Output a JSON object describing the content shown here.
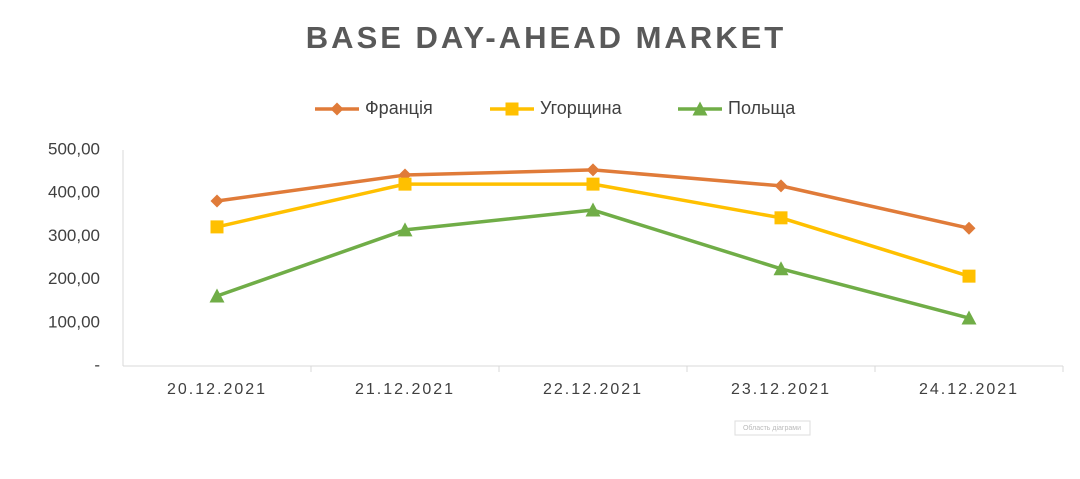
{
  "chart_data": {
    "type": "line",
    "title": "BASE DAY-AHEAD MARKET",
    "categories": [
      "20.12.2021",
      "21.12.2021",
      "22.12.2021",
      "23.12.2021",
      "24.12.2021"
    ],
    "series": [
      {
        "name": "Франція",
        "color": "#e07b39",
        "marker": "diamond",
        "values": [
          382,
          442,
          454,
          417,
          319
        ]
      },
      {
        "name": "Угорщина",
        "color": "#ffc000",
        "marker": "square",
        "values": [
          322,
          421,
          421,
          343,
          208
        ]
      },
      {
        "name": "Польща",
        "color": "#70ad47",
        "marker": "triangle",
        "values": [
          162,
          315,
          361,
          225,
          111
        ]
      }
    ],
    "ylim": [
      0,
      500
    ],
    "yticks": [
      {
        "value": 0,
        "label": "-"
      },
      {
        "value": 100,
        "label": "100,00"
      },
      {
        "value": 200,
        "label": "200,00"
      },
      {
        "value": 300,
        "label": "300,00"
      },
      {
        "value": 400,
        "label": "400,00"
      },
      {
        "value": 500,
        "label": "500,00"
      }
    ],
    "grid": false,
    "legend": "top",
    "annotation": "Область діаграми"
  }
}
